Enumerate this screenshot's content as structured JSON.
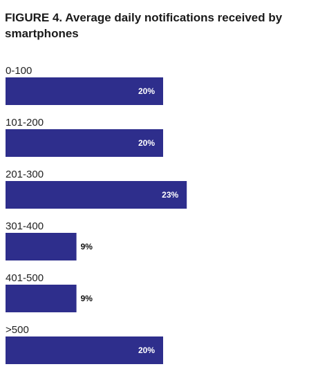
{
  "chart_data": {
    "type": "bar",
    "orientation": "horizontal",
    "title": "FIGURE 4. Average daily notifications received by smartphones",
    "categories": [
      "0-100",
      "101-200",
      "201-300",
      "301-400",
      "401-500",
      ">500"
    ],
    "values": [
      20,
      20,
      23,
      9,
      9,
      20
    ],
    "value_labels": [
      "20%",
      "20%",
      "23%",
      "9%",
      "9%",
      "20%"
    ],
    "unit": "%",
    "xlim": [
      0,
      40
    ],
    "grid": false,
    "legend": "none",
    "colors": {
      "bar": "#2e2e8c",
      "label_inside": "#ffffff",
      "label_outside": "#111111"
    }
  }
}
